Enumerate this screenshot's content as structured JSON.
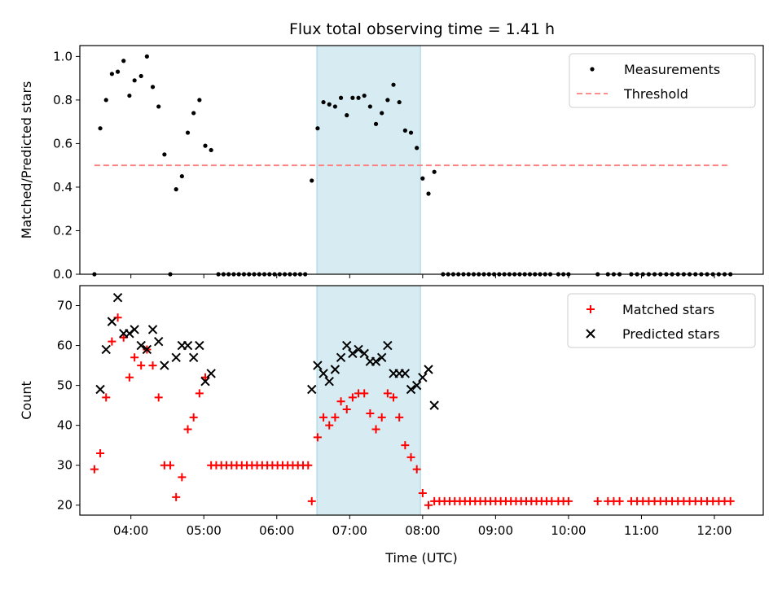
{
  "title": "Flux total observing time = 1.41 h",
  "colors": {
    "measurement": "#000000",
    "threshold": "#ff7f7f",
    "matched": "#ff0000",
    "predicted": "#000000",
    "highlight": "#add8e6"
  },
  "chart_data": [
    {
      "type": "scatter",
      "ylabel": "Matched/Predicted stars",
      "xlabel": "",
      "xlim": [
        3.3,
        12.67
      ],
      "ylim": [
        0,
        1.05
      ],
      "y_ticks": [
        "0.0",
        "0.2",
        "0.4",
        "0.6",
        "0.8",
        "1.0"
      ],
      "highlight_span": [
        6.55,
        7.97
      ],
      "legend_position": "top-right",
      "legend": [
        "Measurements",
        "Threshold"
      ],
      "threshold": {
        "name": "Threshold",
        "y": 0.5,
        "x_range": [
          3.5,
          12.2
        ]
      },
      "series": [
        {
          "name": "Measurements",
          "points": [
            [
              3.5,
              0.0
            ],
            [
              3.58,
              0.67
            ],
            [
              3.66,
              0.8
            ],
            [
              3.74,
              0.92
            ],
            [
              3.82,
              0.93
            ],
            [
              3.9,
              0.98
            ],
            [
              3.98,
              0.82
            ],
            [
              4.05,
              0.89
            ],
            [
              4.14,
              0.91
            ],
            [
              4.22,
              1.0
            ],
            [
              4.3,
              0.86
            ],
            [
              4.38,
              0.77
            ],
            [
              4.46,
              0.55
            ],
            [
              4.54,
              0.0
            ],
            [
              4.62,
              0.39
            ],
            [
              4.7,
              0.45
            ],
            [
              4.78,
              0.65
            ],
            [
              4.86,
              0.74
            ],
            [
              4.94,
              0.8
            ],
            [
              5.02,
              0.59
            ],
            [
              5.1,
              0.57
            ],
            [
              5.2,
              0.0
            ],
            [
              5.27,
              0.0
            ],
            [
              5.34,
              0.0
            ],
            [
              5.41,
              0.0
            ],
            [
              5.48,
              0.0
            ],
            [
              5.55,
              0.0
            ],
            [
              5.62,
              0.0
            ],
            [
              5.69,
              0.0
            ],
            [
              5.76,
              0.0
            ],
            [
              5.83,
              0.0
            ],
            [
              5.9,
              0.0
            ],
            [
              5.97,
              0.0
            ],
            [
              6.04,
              0.0
            ],
            [
              6.11,
              0.0
            ],
            [
              6.18,
              0.0
            ],
            [
              6.25,
              0.0
            ],
            [
              6.32,
              0.0
            ],
            [
              6.39,
              0.0
            ],
            [
              6.48,
              0.43
            ],
            [
              6.56,
              0.67
            ],
            [
              6.64,
              0.79
            ],
            [
              6.72,
              0.78
            ],
            [
              6.8,
              0.77
            ],
            [
              6.88,
              0.81
            ],
            [
              6.96,
              0.73
            ],
            [
              7.04,
              0.81
            ],
            [
              7.12,
              0.81
            ],
            [
              7.2,
              0.82
            ],
            [
              7.28,
              0.77
            ],
            [
              7.36,
              0.69
            ],
            [
              7.44,
              0.74
            ],
            [
              7.52,
              0.8
            ],
            [
              7.6,
              0.87
            ],
            [
              7.68,
              0.79
            ],
            [
              7.76,
              0.66
            ],
            [
              7.84,
              0.65
            ],
            [
              7.92,
              0.58
            ],
            [
              8.0,
              0.44
            ],
            [
              8.08,
              0.37
            ],
            [
              8.16,
              0.47
            ],
            [
              8.28,
              0.0
            ],
            [
              8.35,
              0.0
            ],
            [
              8.42,
              0.0
            ],
            [
              8.49,
              0.0
            ],
            [
              8.56,
              0.0
            ],
            [
              8.63,
              0.0
            ],
            [
              8.7,
              0.0
            ],
            [
              8.77,
              0.0
            ],
            [
              8.84,
              0.0
            ],
            [
              8.91,
              0.0
            ],
            [
              8.98,
              0.0
            ],
            [
              9.05,
              0.0
            ],
            [
              9.12,
              0.0
            ],
            [
              9.19,
              0.0
            ],
            [
              9.26,
              0.0
            ],
            [
              9.33,
              0.0
            ],
            [
              9.4,
              0.0
            ],
            [
              9.47,
              0.0
            ],
            [
              9.54,
              0.0
            ],
            [
              9.61,
              0.0
            ],
            [
              9.68,
              0.0
            ],
            [
              9.75,
              0.0
            ],
            [
              9.86,
              0.0
            ],
            [
              9.93,
              0.0
            ],
            [
              10.0,
              0.0
            ],
            [
              10.4,
              0.0
            ],
            [
              10.54,
              0.0
            ],
            [
              10.62,
              0.0
            ],
            [
              10.7,
              0.0
            ],
            [
              10.86,
              0.0
            ],
            [
              10.94,
              0.0
            ],
            [
              11.02,
              0.0
            ],
            [
              11.1,
              0.0
            ],
            [
              11.18,
              0.0
            ],
            [
              11.26,
              0.0
            ],
            [
              11.34,
              0.0
            ],
            [
              11.42,
              0.0
            ],
            [
              11.5,
              0.0
            ],
            [
              11.58,
              0.0
            ],
            [
              11.66,
              0.0
            ],
            [
              11.74,
              0.0
            ],
            [
              11.82,
              0.0
            ],
            [
              11.9,
              0.0
            ],
            [
              11.98,
              0.0
            ],
            [
              12.06,
              0.0
            ],
            [
              12.14,
              0.0
            ],
            [
              12.22,
              0.0
            ]
          ]
        }
      ]
    },
    {
      "type": "scatter",
      "ylabel": "Count",
      "xlabel": "Time (UTC)",
      "xlim": [
        3.3,
        12.67
      ],
      "ylim": [
        17.5,
        75
      ],
      "y_ticks": [
        "20",
        "30",
        "40",
        "50",
        "60",
        "70"
      ],
      "x_ticks": [
        "04:00",
        "05:00",
        "06:00",
        "07:00",
        "08:00",
        "09:00",
        "10:00",
        "11:00",
        "12:00"
      ],
      "highlight_span": [
        6.55,
        7.97
      ],
      "legend_position": "top-right",
      "legend": [
        "Matched stars",
        "Predicted stars"
      ],
      "series": [
        {
          "name": "Matched stars",
          "points": [
            [
              3.5,
              29
            ],
            [
              3.58,
              33
            ],
            [
              3.66,
              47
            ],
            [
              3.74,
              61
            ],
            [
              3.82,
              67
            ],
            [
              3.9,
              62
            ],
            [
              3.98,
              52
            ],
            [
              4.05,
              57
            ],
            [
              4.14,
              55
            ],
            [
              4.22,
              59
            ],
            [
              4.3,
              55
            ],
            [
              4.38,
              47
            ],
            [
              4.46,
              30
            ],
            [
              4.54,
              30
            ],
            [
              4.62,
              22
            ],
            [
              4.7,
              27
            ],
            [
              4.78,
              39
            ],
            [
              4.86,
              42
            ],
            [
              4.94,
              48
            ],
            [
              5.02,
              52
            ],
            [
              5.1,
              30
            ],
            [
              5.17,
              30
            ],
            [
              5.24,
              30
            ],
            [
              5.31,
              30
            ],
            [
              5.38,
              30
            ],
            [
              5.45,
              30
            ],
            [
              5.52,
              30
            ],
            [
              5.59,
              30
            ],
            [
              5.66,
              30
            ],
            [
              5.73,
              30
            ],
            [
              5.8,
              30
            ],
            [
              5.87,
              30
            ],
            [
              5.94,
              30
            ],
            [
              6.01,
              30
            ],
            [
              6.08,
              30
            ],
            [
              6.15,
              30
            ],
            [
              6.22,
              30
            ],
            [
              6.29,
              30
            ],
            [
              6.36,
              30
            ],
            [
              6.43,
              30
            ],
            [
              6.48,
              21
            ],
            [
              6.56,
              37
            ],
            [
              6.64,
              42
            ],
            [
              6.72,
              40
            ],
            [
              6.8,
              42
            ],
            [
              6.88,
              46
            ],
            [
              6.96,
              44
            ],
            [
              7.04,
              47
            ],
            [
              7.12,
              48
            ],
            [
              7.2,
              48
            ],
            [
              7.28,
              43
            ],
            [
              7.36,
              39
            ],
            [
              7.44,
              42
            ],
            [
              7.52,
              48
            ],
            [
              7.6,
              47
            ],
            [
              7.68,
              42
            ],
            [
              7.76,
              35
            ],
            [
              7.84,
              32
            ],
            [
              7.92,
              29
            ],
            [
              8.0,
              23
            ],
            [
              8.08,
              20
            ],
            [
              8.16,
              21
            ],
            [
              8.23,
              21
            ],
            [
              8.3,
              21
            ],
            [
              8.37,
              21
            ],
            [
              8.44,
              21
            ],
            [
              8.51,
              21
            ],
            [
              8.58,
              21
            ],
            [
              8.65,
              21
            ],
            [
              8.72,
              21
            ],
            [
              8.79,
              21
            ],
            [
              8.86,
              21
            ],
            [
              8.93,
              21
            ],
            [
              9.0,
              21
            ],
            [
              9.07,
              21
            ],
            [
              9.14,
              21
            ],
            [
              9.21,
              21
            ],
            [
              9.28,
              21
            ],
            [
              9.35,
              21
            ],
            [
              9.42,
              21
            ],
            [
              9.49,
              21
            ],
            [
              9.56,
              21
            ],
            [
              9.63,
              21
            ],
            [
              9.7,
              21
            ],
            [
              9.77,
              21
            ],
            [
              9.86,
              21
            ],
            [
              9.93,
              21
            ],
            [
              10.0,
              21
            ],
            [
              10.4,
              21
            ],
            [
              10.54,
              21
            ],
            [
              10.62,
              21
            ],
            [
              10.7,
              21
            ],
            [
              10.86,
              21
            ],
            [
              10.94,
              21
            ],
            [
              11.02,
              21
            ],
            [
              11.1,
              21
            ],
            [
              11.18,
              21
            ],
            [
              11.26,
              21
            ],
            [
              11.34,
              21
            ],
            [
              11.42,
              21
            ],
            [
              11.5,
              21
            ],
            [
              11.58,
              21
            ],
            [
              11.66,
              21
            ],
            [
              11.74,
              21
            ],
            [
              11.82,
              21
            ],
            [
              11.9,
              21
            ],
            [
              11.98,
              21
            ],
            [
              12.06,
              21
            ],
            [
              12.14,
              21
            ],
            [
              12.22,
              21
            ]
          ]
        },
        {
          "name": "Predicted stars",
          "points": [
            [
              3.58,
              49
            ],
            [
              3.66,
              59
            ],
            [
              3.74,
              66
            ],
            [
              3.82,
              72
            ],
            [
              3.9,
              63
            ],
            [
              3.98,
              63
            ],
            [
              4.05,
              64
            ],
            [
              4.14,
              60
            ],
            [
              4.22,
              59
            ],
            [
              4.3,
              64
            ],
            [
              4.38,
              61
            ],
            [
              4.46,
              55
            ],
            [
              4.62,
              57
            ],
            [
              4.7,
              60
            ],
            [
              4.78,
              60
            ],
            [
              4.86,
              57
            ],
            [
              4.94,
              60
            ],
            [
              5.02,
              51
            ],
            [
              5.1,
              53
            ],
            [
              6.48,
              49
            ],
            [
              6.56,
              55
            ],
            [
              6.64,
              53
            ],
            [
              6.72,
              51
            ],
            [
              6.8,
              54
            ],
            [
              6.88,
              57
            ],
            [
              6.96,
              60
            ],
            [
              7.04,
              58
            ],
            [
              7.12,
              59
            ],
            [
              7.2,
              58
            ],
            [
              7.28,
              56
            ],
            [
              7.36,
              56
            ],
            [
              7.44,
              57
            ],
            [
              7.52,
              60
            ],
            [
              7.6,
              53
            ],
            [
              7.68,
              53
            ],
            [
              7.76,
              53
            ],
            [
              7.84,
              49
            ],
            [
              7.92,
              50
            ],
            [
              8.0,
              52
            ],
            [
              8.08,
              54
            ],
            [
              8.16,
              45
            ]
          ]
        }
      ]
    }
  ]
}
